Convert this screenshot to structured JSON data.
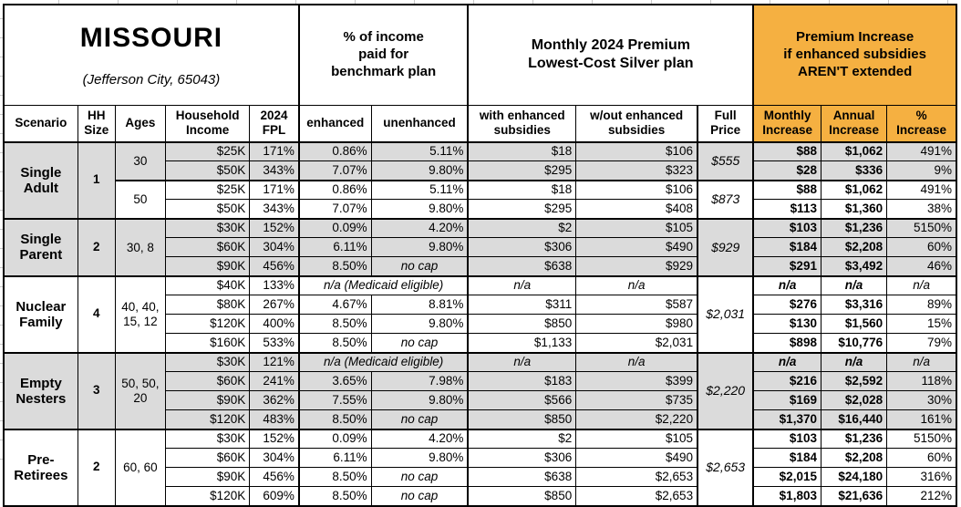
{
  "title": {
    "name": "MISSOURI",
    "location": "(Jefferson City, 65043)"
  },
  "group_headers": {
    "benchmark": "% of income\npaid for\nbenchmark plan",
    "premium": "Monthly 2024 Premium\nLowest-Cost Silver plan",
    "increase": "Premium Increase\nif enhanced subsidies\nAREN'T extended"
  },
  "columns": {
    "scenario": "Scenario",
    "hh": "HH\nSize",
    "ages": "Ages",
    "income": "Household\nIncome",
    "fpl": "2024\nFPL",
    "enhanced": "enhanced",
    "unenhanced": "unenhanced",
    "with_sub": "with enhanced\nsubsidies",
    "wo_sub": "w/out enhanced\nsubsidies",
    "full": "Full\nPrice",
    "monthly": "Monthly\nIncrease",
    "annual": "Annual\nIncrease",
    "pct": "%\nIncrease"
  },
  "colors": {
    "accent_orange": "#F5B041",
    "row_shade": "#DBDBDB"
  },
  "table": {
    "groups": [
      {
        "scenario": "Single Adult",
        "hh": "1",
        "spans": [
          {
            "ages": "30",
            "full": "$555",
            "rows": [
              {
                "income": "$25K",
                "fpl": "171%",
                "enh": "0.86%",
                "unenh": "5.11%",
                "ws": "$18",
                "wo": "$106",
                "mo": "$88",
                "an": "$1,062",
                "pct": "491%"
              },
              {
                "income": "$50K",
                "fpl": "343%",
                "enh": "7.07%",
                "unenh": "9.80%",
                "ws": "$295",
                "wo": "$323",
                "mo": "$28",
                "an": "$336",
                "pct": "9%"
              }
            ]
          },
          {
            "ages": "50",
            "full": "$873",
            "rows": [
              {
                "income": "$25K",
                "fpl": "171%",
                "enh": "0.86%",
                "unenh": "5.11%",
                "ws": "$18",
                "wo": "$106",
                "mo": "$88",
                "an": "$1,062",
                "pct": "491%"
              },
              {
                "income": "$50K",
                "fpl": "343%",
                "enh": "7.07%",
                "unenh": "9.80%",
                "ws": "$295",
                "wo": "$408",
                "mo": "$113",
                "an": "$1,360",
                "pct": "38%"
              }
            ]
          }
        ]
      },
      {
        "scenario": "Single Parent",
        "hh": "2",
        "spans": [
          {
            "ages": "30, 8",
            "full": "$929",
            "rows": [
              {
                "income": "$30K",
                "fpl": "152%",
                "enh": "0.09%",
                "unenh": "4.20%",
                "ws": "$2",
                "wo": "$105",
                "mo": "$103",
                "an": "$1,236",
                "pct": "5150%"
              },
              {
                "income": "$60K",
                "fpl": "304%",
                "enh": "6.11%",
                "unenh": "9.80%",
                "ws": "$306",
                "wo": "$490",
                "mo": "$184",
                "an": "$2,208",
                "pct": "60%"
              },
              {
                "income": "$90K",
                "fpl": "456%",
                "enh": "8.50%",
                "unenh": "no cap",
                "ws": "$638",
                "wo": "$929",
                "mo": "$291",
                "an": "$3,492",
                "pct": "46%"
              }
            ]
          }
        ]
      },
      {
        "scenario": "Nuclear Family",
        "hh": "4",
        "spans": [
          {
            "ages": "40, 40, 15, 12",
            "full": "$2,031",
            "rows": [
              {
                "income": "$40K",
                "fpl": "133%",
                "med": "n/a (Medicaid eligible)",
                "ws": "n/a",
                "wo": "n/a",
                "mo": "n/a",
                "an": "n/a",
                "pct": "n/a"
              },
              {
                "income": "$80K",
                "fpl": "267%",
                "enh": "4.67%",
                "unenh": "8.81%",
                "ws": "$311",
                "wo": "$587",
                "mo": "$276",
                "an": "$3,316",
                "pct": "89%"
              },
              {
                "income": "$120K",
                "fpl": "400%",
                "enh": "8.50%",
                "unenh": "9.80%",
                "ws": "$850",
                "wo": "$980",
                "mo": "$130",
                "an": "$1,560",
                "pct": "15%"
              },
              {
                "income": "$160K",
                "fpl": "533%",
                "enh": "8.50%",
                "unenh": "no cap",
                "ws": "$1,133",
                "wo": "$2,031",
                "mo": "$898",
                "an": "$10,776",
                "pct": "79%"
              }
            ]
          }
        ]
      },
      {
        "scenario": "Empty Nesters",
        "hh": "3",
        "spans": [
          {
            "ages": "50, 50, 20",
            "full": "$2,220",
            "rows": [
              {
                "income": "$30K",
                "fpl": "121%",
                "med": "n/a (Medicaid eligible)",
                "ws": "n/a",
                "wo": "n/a",
                "mo": "n/a",
                "an": "n/a",
                "pct": "n/a"
              },
              {
                "income": "$60K",
                "fpl": "241%",
                "enh": "3.65%",
                "unenh": "7.98%",
                "ws": "$183",
                "wo": "$399",
                "mo": "$216",
                "an": "$2,592",
                "pct": "118%"
              },
              {
                "income": "$90K",
                "fpl": "362%",
                "enh": "7.55%",
                "unenh": "9.80%",
                "ws": "$566",
                "wo": "$735",
                "mo": "$169",
                "an": "$2,028",
                "pct": "30%"
              },
              {
                "income": "$120K",
                "fpl": "483%",
                "enh": "8.50%",
                "unenh": "no cap",
                "ws": "$850",
                "wo": "$2,220",
                "mo": "$1,370",
                "an": "$16,440",
                "pct": "161%"
              }
            ]
          }
        ]
      },
      {
        "scenario": "Pre-Retirees",
        "hh": "2",
        "spans": [
          {
            "ages": "60, 60",
            "full": "$2,653",
            "rows": [
              {
                "income": "$30K",
                "fpl": "152%",
                "enh": "0.09%",
                "unenh": "4.20%",
                "ws": "$2",
                "wo": "$105",
                "mo": "$103",
                "an": "$1,236",
                "pct": "5150%"
              },
              {
                "income": "$60K",
                "fpl": "304%",
                "enh": "6.11%",
                "unenh": "9.80%",
                "ws": "$306",
                "wo": "$490",
                "mo": "$184",
                "an": "$2,208",
                "pct": "60%"
              },
              {
                "income": "$90K",
                "fpl": "456%",
                "enh": "8.50%",
                "unenh": "no cap",
                "ws": "$638",
                "wo": "$2,653",
                "mo": "$2,015",
                "an": "$24,180",
                "pct": "316%"
              },
              {
                "income": "$120K",
                "fpl": "609%",
                "enh": "8.50%",
                "unenh": "no cap",
                "ws": "$850",
                "wo": "$2,653",
                "mo": "$1,803",
                "an": "$21,636",
                "pct": "212%"
              }
            ]
          }
        ]
      }
    ]
  }
}
